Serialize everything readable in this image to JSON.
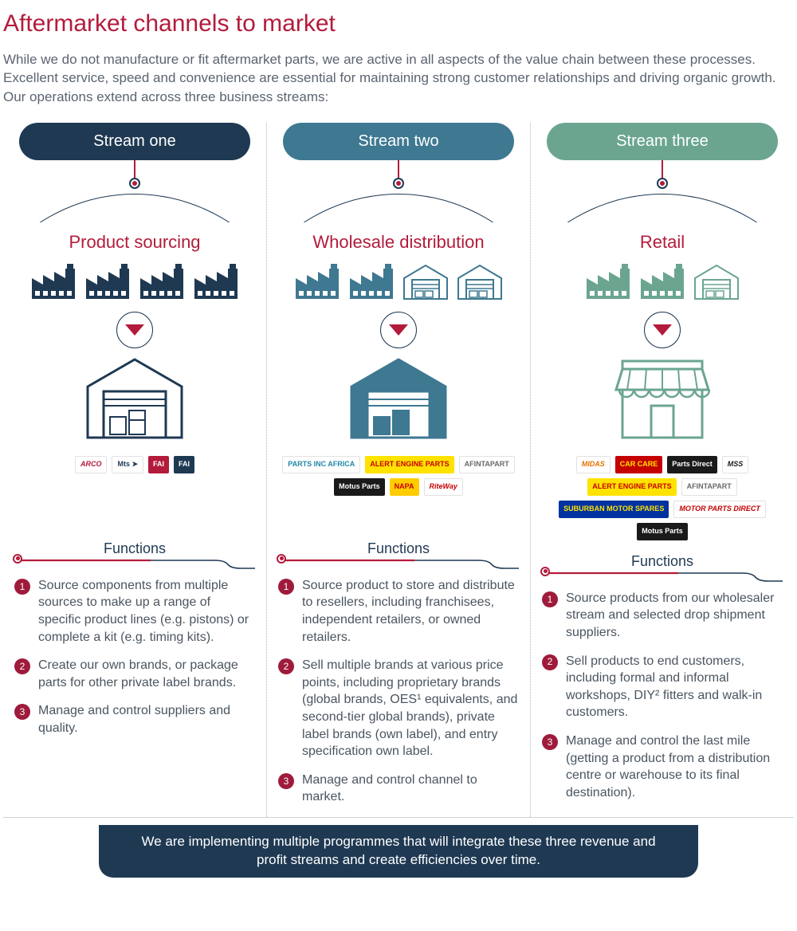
{
  "title": "Aftermarket channels to market",
  "intro": "While we do not manufacture or fit aftermarket parts, we are active in all aspects of the value chain between these processes. Excellent service, speed and convenience are essential for maintaining strong customer relationships and driving organic growth. Our operations extend across three business streams:",
  "functions_label": "Functions",
  "footer": "We are implementing multiple programmes that will integrate these three revenue and profit streams and create efficiencies over time.",
  "colors": {
    "accent_red": "#b31b3b",
    "bullet_bg": "#9e1b3b",
    "text_body": "#4a5560",
    "dark_navy": "#1f3953"
  },
  "streams": [
    {
      "pill": "Stream one",
      "pill_color": "#1f3953",
      "heading": "Product sourcing",
      "icon_color": "#1f3953",
      "top_icons": [
        "factory",
        "factory",
        "factory",
        "factory"
      ],
      "big_icon": "warehouse",
      "big_icon_style": "outline",
      "logos": [
        {
          "text": "ARCO",
          "bg": "#ffffff",
          "fg": "#b31b3b",
          "italic": true,
          "weight": 800
        },
        {
          "text": "Mts ➤",
          "bg": "#ffffff",
          "fg": "#1f3953",
          "weight": 800
        },
        {
          "text": "FAI",
          "bg": "#b31b3b",
          "fg": "#ffffff"
        },
        {
          "text": "FAI",
          "bg": "#1f3953",
          "fg": "#ffffff"
        }
      ],
      "bullets": [
        "Source components from multiple sources to make up a range of specific product lines (e.g. pistons) or complete a kit (e.g. timing kits).",
        "Create our own brands, or package parts for other private label brands.",
        "Manage and control suppliers and quality."
      ]
    },
    {
      "pill": "Stream two",
      "pill_color": "#3e7891",
      "heading": "Wholesale distribution",
      "icon_color": "#3e7891",
      "top_icons": [
        "factory",
        "factory",
        "garage",
        "garage"
      ],
      "big_icon": "warehouse",
      "big_icon_style": "filled",
      "logos": [
        {
          "text": "PARTS INC AFRICA",
          "bg": "#ffffff",
          "fg": "#1f88a8"
        },
        {
          "text": "ALERT ENGINE PARTS",
          "bg": "#ffe200",
          "fg": "#c50000"
        },
        {
          "text": "AFINTAPART",
          "bg": "#ffffff",
          "fg": "#6a6a6a"
        },
        {
          "text": "Motus Parts",
          "bg": "#1a1a1a",
          "fg": "#ffffff"
        },
        {
          "text": "NAPA",
          "bg": "#ffcc00",
          "fg": "#c50000"
        },
        {
          "text": "RiteWay",
          "bg": "#ffffff",
          "fg": "#c50000",
          "italic": true
        }
      ],
      "bullets": [
        "Source product to store and distribute to resellers, including franchisees, independent retailers, or owned retailers.",
        "Sell multiple brands at various price points, including proprietary brands (global brands, OES¹ equivalents, and second-tier global brands), private label brands (own label), and entry specification own label.",
        "Manage and control channel to market."
      ]
    },
    {
      "pill": "Stream three",
      "pill_color": "#6ba590",
      "heading": "Retail",
      "icon_color": "#6ba590",
      "top_icons": [
        "factory",
        "factory",
        "garage"
      ],
      "big_icon": "storefront",
      "big_icon_style": "outline",
      "logos": [
        {
          "text": "MIDAS",
          "bg": "#ffffff",
          "fg": "#e67300",
          "italic": true
        },
        {
          "text": "CAR CARE",
          "bg": "#c50000",
          "fg": "#ffe200"
        },
        {
          "text": "Parts Direct",
          "bg": "#1a1a1a",
          "fg": "#ffffff"
        },
        {
          "text": "MSS",
          "bg": "#ffffff",
          "fg": "#1a1a1a",
          "italic": true
        },
        {
          "text": "ALERT ENGINE PARTS",
          "bg": "#ffe200",
          "fg": "#c50000"
        },
        {
          "text": "AFINTAPART",
          "bg": "#ffffff",
          "fg": "#6a6a6a"
        },
        {
          "text": "SUBURBAN MOTOR SPARES",
          "bg": "#0033a0",
          "fg": "#ffe200"
        },
        {
          "text": "MOTOR PARTS DIRECT",
          "bg": "#ffffff",
          "fg": "#c50000",
          "italic": true
        },
        {
          "text": "Motus Parts",
          "bg": "#1a1a1a",
          "fg": "#ffffff"
        }
      ],
      "bullets": [
        "Source products from our wholesaler stream and selected drop shipment suppliers.",
        "Sell products to end customers, including formal and informal workshops, DIY² fitters and walk-in customers.",
        "Manage and control the last mile (getting a product from a distribution centre or warehouse to its final destination)."
      ]
    }
  ]
}
